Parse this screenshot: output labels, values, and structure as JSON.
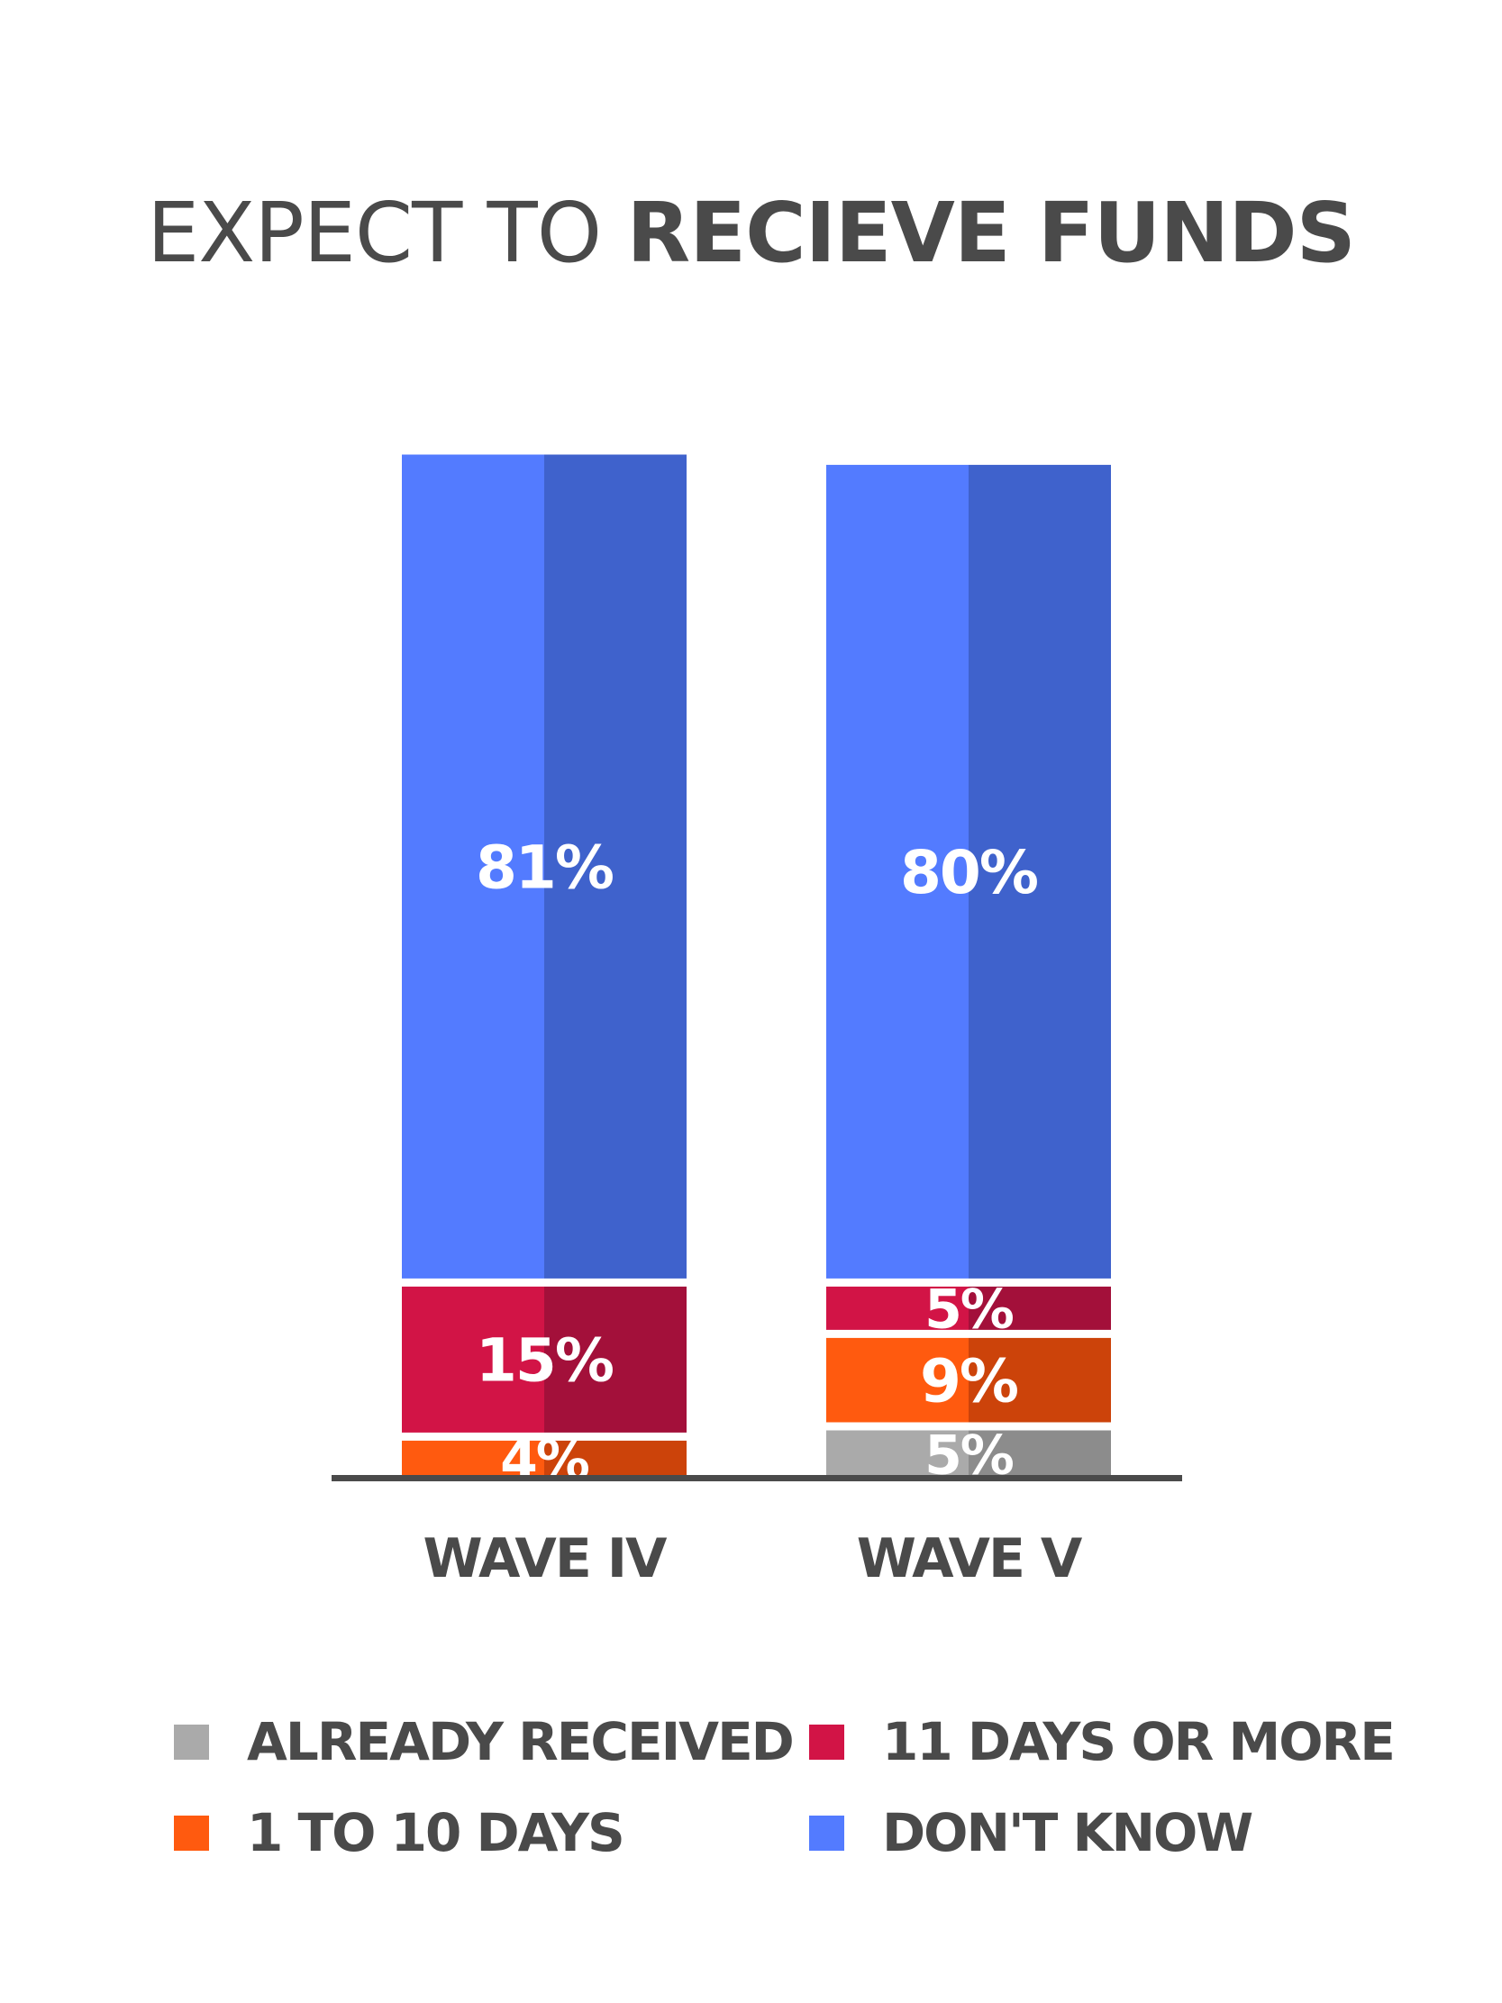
{
  "chart_data": {
    "type": "bar",
    "stacked": true,
    "title_light": "EXPECT TO ",
    "title_bold": "RECIEVE FUNDS",
    "categories": [
      "WAVE IV",
      "WAVE V"
    ],
    "ylim": [
      0,
      100
    ],
    "series": [
      {
        "name": "ALREADY RECEIVED",
        "values": [
          0,
          5
        ],
        "labels": [
          "",
          "5%"
        ]
      },
      {
        "name": "1 TO 10 DAYS",
        "values": [
          4,
          9
        ],
        "labels": [
          "4%",
          "9%"
        ]
      },
      {
        "name": "11 DAYS OR MORE",
        "values": [
          15,
          5
        ],
        "labels": [
          "15%",
          "5%"
        ]
      },
      {
        "name": "DON'T KNOW",
        "values": [
          81,
          80
        ],
        "labels": [
          "81%",
          "80%"
        ]
      }
    ],
    "legend_position": "bottom"
  },
  "colors": {
    "ALREADY RECEIVED": {
      "light": "#aaaaaa",
      "dark": "#8c8c8c"
    },
    "1 TO 10 DAYS": {
      "light": "#ff5a0f",
      "dark": "#cc430a"
    },
    "11 DAYS OR MORE": {
      "light": "#d21446",
      "dark": "#a3103a"
    },
    "DON'T KNOW": {
      "light": "#537bff",
      "dark": "#3f62cc"
    },
    "baseline": "#4a4a4a",
    "text": "#4a4a4a",
    "label_text": "#ffffff"
  }
}
